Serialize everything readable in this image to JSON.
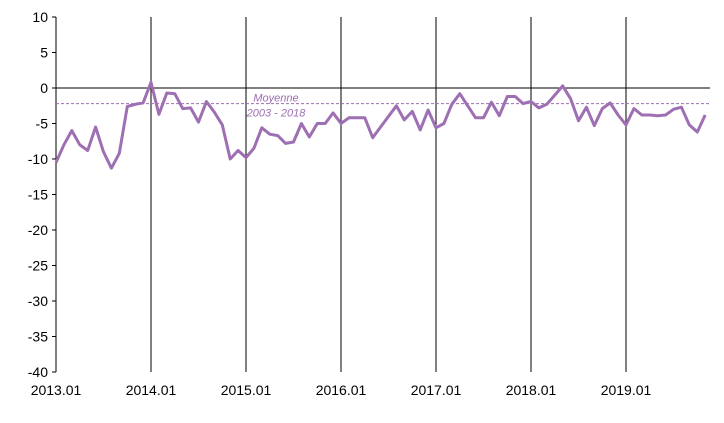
{
  "chart_data": {
    "type": "line",
    "title": "",
    "xlabel": "",
    "ylabel": "",
    "ylim": [
      -40,
      10
    ],
    "yticks": [
      10,
      5,
      0,
      -5,
      -10,
      -15,
      -20,
      -25,
      -30,
      -35,
      -40
    ],
    "yticks_labels": [
      "10",
      "5",
      "0",
      "-5",
      "-10",
      "-15",
      "-20",
      "-25",
      "-30",
      "-35",
      "-40"
    ],
    "xticks_labels": [
      "2013.01",
      "2014.01",
      "2015.01",
      "2016.01",
      "2017.01",
      "2018.01",
      "2019.01"
    ],
    "grid": "vertical lines at each year",
    "series": [
      {
        "color": "#9e6fb2",
        "start": "2013.01",
        "values": [
          -10.5,
          -8.0,
          -6.0,
          -8.0,
          -8.8,
          -5.5,
          -9.0,
          -11.3,
          -9.2,
          -2.6,
          -2.3,
          -2.1,
          0.8,
          -3.7,
          -0.7,
          -0.8,
          -2.9,
          -2.8,
          -4.8,
          -1.9,
          -3.4,
          -5.2,
          -10.0,
          -8.8,
          -9.8,
          -8.5,
          -5.6,
          -6.5,
          -6.7,
          -7.8,
          -7.6,
          -5.0,
          -6.9,
          -5.0,
          -5.0,
          -3.5,
          -5.0,
          -4.2,
          -4.2,
          -4.2,
          -7.0,
          -5.5,
          -4.0,
          -2.5,
          -4.5,
          -3.3,
          -5.9,
          -3.1,
          -5.6,
          -5.0,
          -2.3,
          -0.8,
          -2.5,
          -4.2,
          -4.2,
          -2.0,
          -3.9,
          -1.2,
          -1.2,
          -2.2,
          -1.9,
          -2.8,
          -2.3,
          -1.0,
          0.3,
          -1.5,
          -4.6,
          -2.7,
          -5.3,
          -2.9,
          -2.1,
          -3.8,
          -5.2,
          -2.9,
          -3.8,
          -3.8,
          -3.9,
          -3.8,
          -3.0,
          -2.7,
          -5.2,
          -6.2,
          -3.8
        ]
      }
    ],
    "reference_line": {
      "value": -2.2,
      "color": "#9e6fb2",
      "style": "dashed",
      "label_line1": "Moyenne",
      "label_line2": "2003 - 2018"
    }
  }
}
